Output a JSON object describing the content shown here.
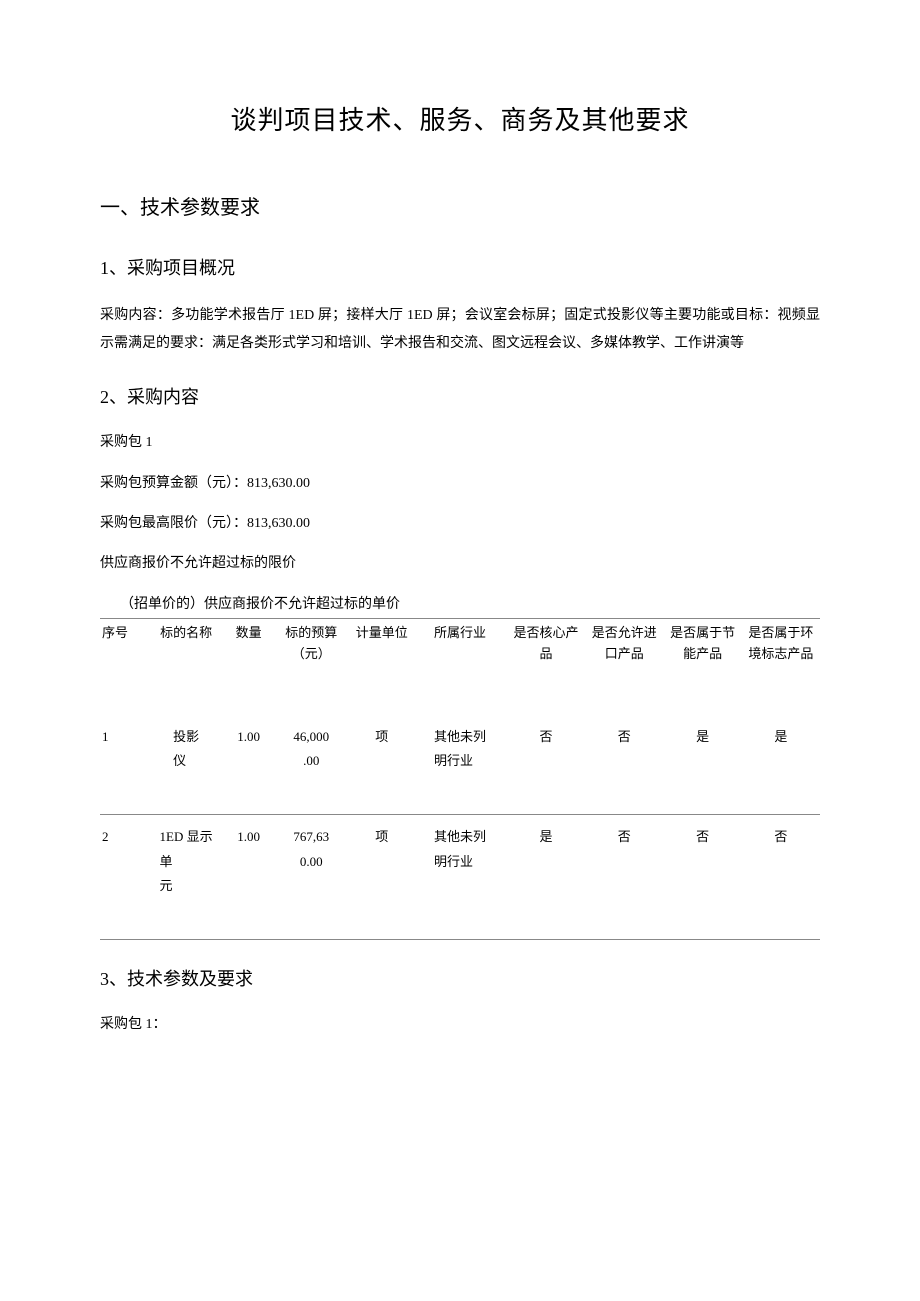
{
  "title": "谈判项目技术、服务、商务及其他要求",
  "section1": {
    "heading": "一、技术参数要求",
    "sub1": {
      "heading": "1、采购项目概况",
      "text": "采购内容：多功能学术报告厅 1ED 屏；接样大厅 1ED 屏；会议室会标屏；固定式投影仪等主要功能或目标：视频显示需满足的要求：满足各类形式学习和培训、学术报告和交流、图文远程会议、多媒体教学、工作讲演等"
    },
    "sub2": {
      "heading": "2、采购内容",
      "package_label": "采购包 1",
      "budget_label": "采购包预算金额（元）：813,630.00",
      "ceiling_label": "采购包最高限价（元）：813,630.00",
      "supplier_note": "供应商报价不允许超过标的限价",
      "table_note": "（招单价的）供应商报价不允许超过标的单价"
    },
    "sub3": {
      "heading": "3、技术参数及要求",
      "package_label": "采购包 1："
    }
  },
  "table": {
    "headers": {
      "seq": "序号",
      "name": "标的名称",
      "qty": "数量",
      "budget": "标的预算（元）",
      "unit": "计量单位",
      "industry": "所属行业",
      "core": "是否核心产品",
      "import": "是否允许进口产品",
      "energy": "是否属于节能产品",
      "env": "是否属于环境标志产品"
    },
    "rows": [
      {
        "seq": "1",
        "name_l1": "投影",
        "name_l2": "仪",
        "qty": "1.00",
        "budget_l1": "46,000",
        "budget_l2": ".00",
        "unit": "项",
        "industry_l1": "其他未列",
        "industry_l2": "明行业",
        "core": "否",
        "import": "否",
        "energy": "是",
        "env": "是"
      },
      {
        "seq": "2",
        "name_l1": "1ED 显示",
        "name_l2": "单",
        "name_l3": "元",
        "qty": "1.00",
        "budget_l1": "767,63",
        "budget_l2": "0.00",
        "unit": "项",
        "industry_l1": "其他未列",
        "industry_l2": "明行业",
        "core": "是",
        "import": "否",
        "energy": "否",
        "env": "否"
      }
    ]
  }
}
